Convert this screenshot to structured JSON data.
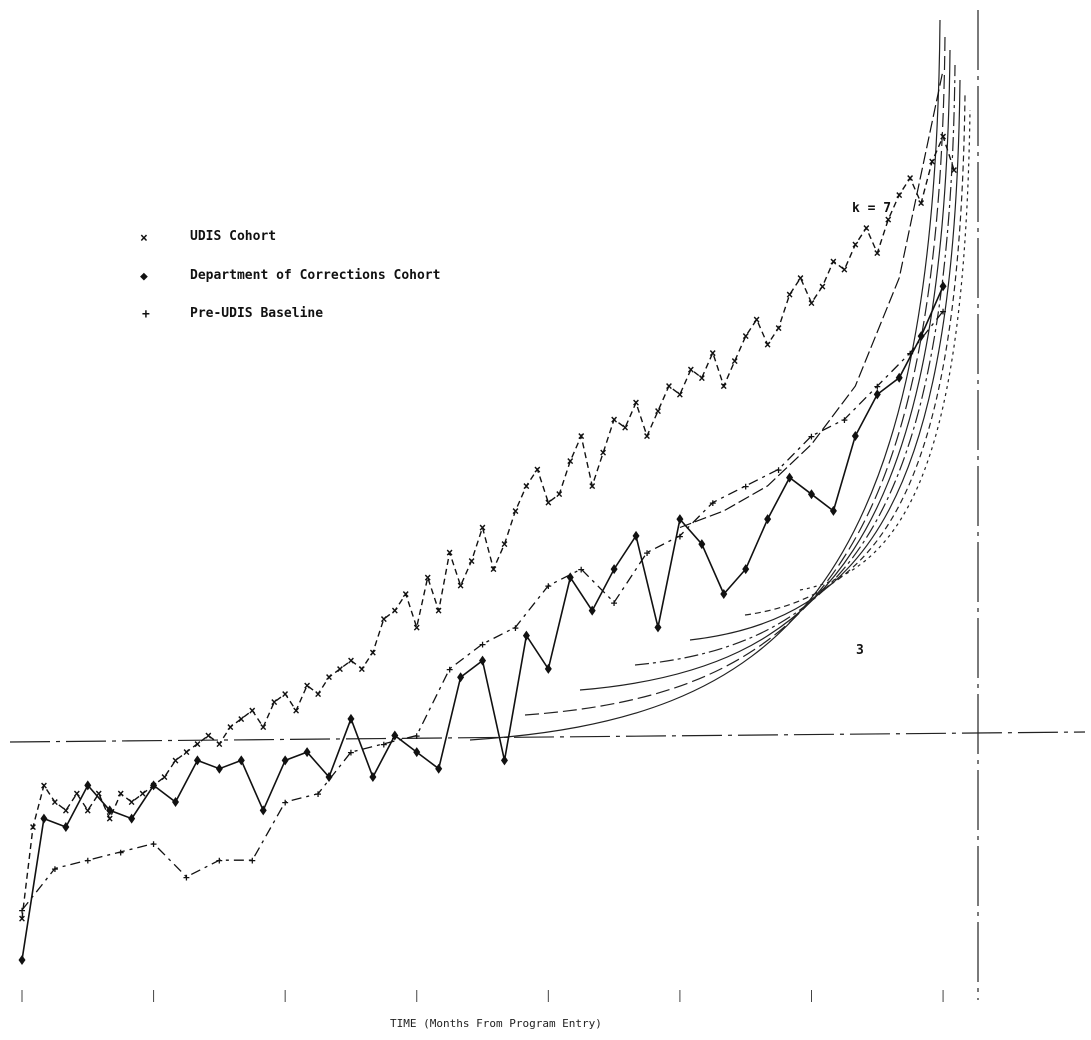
{
  "chart_data": {
    "type": "line",
    "xlabel": "TIME (Months From Program Entry)",
    "legend_position": "top-left",
    "legend": [
      {
        "label": "UDIS Cohort",
        "marker": "x"
      },
      {
        "label": "Department of Corrections Cohort",
        "marker": "diamond"
      },
      {
        "label": "Pre-UDIS Baseline",
        "marker": "plus"
      }
    ],
    "curve_labels": [
      "k = 7",
      "3"
    ],
    "series": [
      {
        "name": "UDIS Cohort",
        "x": [
          0,
          1,
          2,
          3,
          4,
          5,
          6,
          7,
          8,
          9,
          10,
          11,
          12,
          13,
          14,
          15,
          16,
          17,
          18,
          19,
          20,
          21,
          22,
          23,
          24,
          25,
          26,
          27,
          28,
          29,
          30,
          31,
          32,
          33,
          34,
          35,
          36,
          37,
          38,
          39,
          40,
          41,
          42,
          43,
          44,
          45,
          46,
          47,
          48,
          49,
          50,
          51,
          52,
          53,
          54,
          55,
          56,
          57,
          58,
          59,
          60,
          61,
          62,
          63,
          64,
          65,
          66,
          67,
          68,
          69,
          70,
          71,
          72,
          73,
          74,
          75,
          76,
          77,
          78,
          79,
          80,
          81,
          82,
          83,
          84,
          85
        ],
        "y": [
          0.08,
          0.19,
          0.24,
          0.22,
          0.21,
          0.23,
          0.21,
          0.23,
          0.2,
          0.23,
          0.22,
          0.23,
          0.24,
          0.25,
          0.27,
          0.28,
          0.29,
          0.3,
          0.29,
          0.31,
          0.32,
          0.33,
          0.31,
          0.34,
          0.35,
          0.33,
          0.36,
          0.35,
          0.37,
          0.38,
          0.39,
          0.38,
          0.4,
          0.44,
          0.45,
          0.47,
          0.43,
          0.49,
          0.45,
          0.52,
          0.48,
          0.51,
          0.55,
          0.5,
          0.53,
          0.57,
          0.6,
          0.62,
          0.58,
          0.59,
          0.63,
          0.66,
          0.6,
          0.64,
          0.68,
          0.67,
          0.7,
          0.66,
          0.69,
          0.72,
          0.71,
          0.74,
          0.73,
          0.76,
          0.72,
          0.75,
          0.78,
          0.8,
          0.77,
          0.79,
          0.83,
          0.85,
          0.82,
          0.84,
          0.87,
          0.86,
          0.89,
          0.91,
          0.88,
          0.92,
          0.95,
          0.97,
          0.94,
          0.99,
          1.02,
          0.98
        ]
      },
      {
        "name": "Department of Corrections Cohort",
        "x": [
          0,
          2,
          4,
          6,
          8,
          10,
          12,
          14,
          16,
          18,
          20,
          22,
          24,
          26,
          28,
          30,
          32,
          34,
          36,
          38,
          40,
          42,
          44,
          46,
          48,
          50,
          52,
          54,
          56,
          58,
          60,
          62,
          64,
          66,
          68,
          70,
          72,
          74,
          76,
          78,
          80,
          82,
          84
        ],
        "y": [
          0.03,
          0.2,
          0.19,
          0.24,
          0.21,
          0.2,
          0.24,
          0.22,
          0.27,
          0.26,
          0.27,
          0.21,
          0.27,
          0.28,
          0.25,
          0.32,
          0.25,
          0.3,
          0.28,
          0.26,
          0.37,
          0.39,
          0.27,
          0.42,
          0.38,
          0.49,
          0.45,
          0.5,
          0.54,
          0.43,
          0.56,
          0.53,
          0.47,
          0.5,
          0.56,
          0.61,
          0.59,
          0.57,
          0.66,
          0.71,
          0.73,
          0.78,
          0.84
        ]
      },
      {
        "name": "Pre-UDIS Baseline",
        "x": [
          0,
          3,
          6,
          9,
          12,
          15,
          18,
          21,
          24,
          27,
          30,
          33,
          36,
          39,
          42,
          45,
          48,
          51,
          54,
          57,
          60,
          63,
          66,
          69,
          72,
          75,
          78,
          81,
          84
        ],
        "y": [
          0.09,
          0.14,
          0.15,
          0.16,
          0.17,
          0.13,
          0.15,
          0.15,
          0.22,
          0.23,
          0.28,
          0.29,
          0.3,
          0.38,
          0.41,
          0.43,
          0.48,
          0.5,
          0.46,
          0.52,
          0.54,
          0.58,
          0.6,
          0.62,
          0.66,
          0.68,
          0.72,
          0.76,
          0.81
        ]
      },
      {
        "name": "",
        "x": [
          60,
          64,
          68,
          72,
          76,
          80,
          84
        ],
        "y": [
          0.55,
          0.57,
          0.6,
          0.65,
          0.72,
          0.85,
          1.1
        ]
      }
    ],
    "horizontal_reference_y": 0.4
  }
}
